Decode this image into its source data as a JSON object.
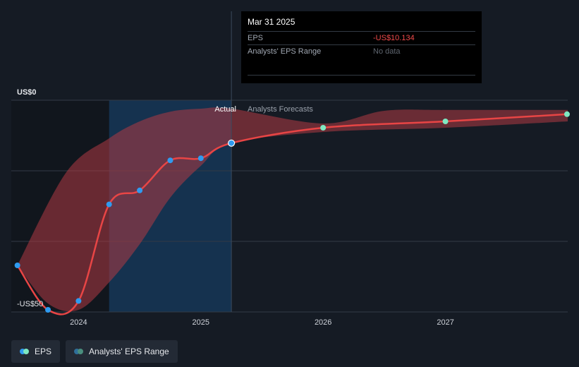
{
  "tooltip": {
    "date": "Mar 31 2025",
    "eps_label": "EPS",
    "eps_value": "-US$10.134",
    "range_label": "Analysts' EPS Range",
    "range_value": "No data"
  },
  "labels": {
    "actual": "Actual",
    "forecast": "Analysts Forecasts"
  },
  "legend": {
    "eps": "EPS",
    "range": "Analysts' EPS Range"
  },
  "colors": {
    "background": "#151b24",
    "eps_line": "#e84545",
    "actual_point": "#2f9bf0",
    "forecast_point": "#7ee8c2",
    "range_fill": "#b03a44",
    "actual_band": "#15324f"
  },
  "chart_data": {
    "type": "line",
    "ylim": [
      -50,
      0
    ],
    "y_ticks": [
      {
        "value": 0,
        "label": "US$0"
      },
      {
        "value": -50,
        "label": "-US$50"
      }
    ],
    "x_ticks": [
      "2024",
      "2025",
      "2026",
      "2027"
    ],
    "xlim": [
      2023.45,
      2028.0
    ],
    "actual_end": 2025.25,
    "highlight_start": 2024.25,
    "series": [
      {
        "name": "EPS",
        "actual": [
          {
            "x": 2023.5,
            "y": -39.0
          },
          {
            "x": 2023.75,
            "y": -49.5
          },
          {
            "x": 2024.0,
            "y": -47.4
          },
          {
            "x": 2024.25,
            "y": -24.6
          },
          {
            "x": 2024.5,
            "y": -21.3
          },
          {
            "x": 2024.75,
            "y": -14.2
          },
          {
            "x": 2025.0,
            "y": -13.7
          },
          {
            "x": 2025.25,
            "y": -10.134
          }
        ],
        "forecast": [
          {
            "x": 2026.0,
            "y": -6.5
          },
          {
            "x": 2027.0,
            "y": -5.0
          },
          {
            "x": 2028.0,
            "y": -3.3
          }
        ]
      },
      {
        "name": "Analysts' EPS Range",
        "upper": [
          {
            "x": 2023.5,
            "y": -39.0
          },
          {
            "x": 2023.9,
            "y": -17.0
          },
          {
            "x": 2024.25,
            "y": -9.0
          },
          {
            "x": 2024.5,
            "y": -5.0
          },
          {
            "x": 2024.75,
            "y": -2.7
          },
          {
            "x": 2025.0,
            "y": -2.0
          },
          {
            "x": 2025.25,
            "y": -2.0
          },
          {
            "x": 2026.0,
            "y": -5.5
          },
          {
            "x": 2026.5,
            "y": -2.5
          },
          {
            "x": 2027.0,
            "y": -2.3
          },
          {
            "x": 2028.0,
            "y": -2.3
          }
        ],
        "lower": [
          {
            "x": 2023.5,
            "y": -39.0
          },
          {
            "x": 2023.75,
            "y": -48.0
          },
          {
            "x": 2024.0,
            "y": -49.5
          },
          {
            "x": 2024.25,
            "y": -43.0
          },
          {
            "x": 2024.5,
            "y": -34.0
          },
          {
            "x": 2024.75,
            "y": -23.0
          },
          {
            "x": 2025.0,
            "y": -15.5
          },
          {
            "x": 2025.25,
            "y": -10.134
          },
          {
            "x": 2026.0,
            "y": -7.5
          },
          {
            "x": 2027.0,
            "y": -6.5
          },
          {
            "x": 2028.0,
            "y": -5.0
          }
        ]
      }
    ]
  }
}
